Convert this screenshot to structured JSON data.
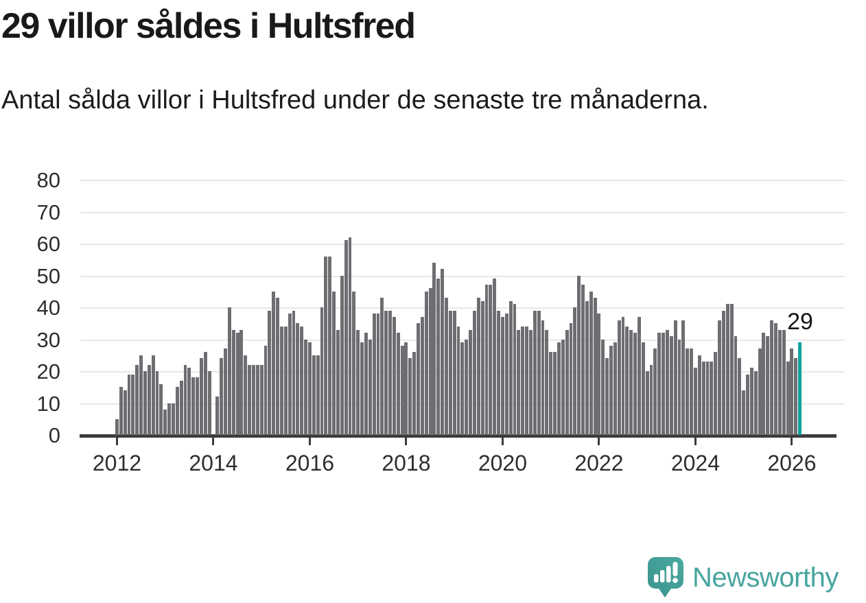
{
  "header": {
    "title": "29 villor såldes i Hultsfred",
    "subtitle": "Antal sålda villor i Hultsfred under de senaste tre månaderna."
  },
  "chart_data": {
    "type": "bar",
    "title": "29 villor såldes i Hultsfred",
    "subtitle": "Antal sålda villor i Hultsfred under de senaste tre månaderna.",
    "unit": "sålda villor (rullande tre månader)",
    "start_month": "2012-01",
    "end_month": "2026-03",
    "values": [
      5,
      15,
      14,
      19,
      19,
      22,
      25,
      20,
      22,
      25,
      20,
      16,
      8,
      10,
      10,
      15,
      17,
      22,
      21,
      18,
      18,
      24,
      26,
      20,
      0,
      12,
      24,
      27,
      40,
      33,
      32,
      33,
      25,
      22,
      22,
      22,
      22,
      28,
      39,
      45,
      43,
      34,
      34,
      38,
      39,
      35,
      34,
      30,
      29,
      25,
      25,
      40,
      56,
      56,
      45,
      33,
      50,
      61,
      62,
      45,
      33,
      29,
      32,
      30,
      38,
      38,
      43,
      39,
      39,
      37,
      32,
      28,
      29,
      24,
      26,
      35,
      37,
      45,
      46,
      54,
      49,
      52,
      43,
      39,
      39,
      34,
      29,
      30,
      33,
      39,
      43,
      42,
      47,
      47,
      49,
      39,
      37,
      38,
      42,
      41,
      33,
      34,
      34,
      33,
      39,
      39,
      36,
      33,
      26,
      26,
      29,
      30,
      33,
      35,
      40,
      50,
      47,
      42,
      45,
      43,
      38,
      30,
      24,
      28,
      29,
      36,
      37,
      34,
      33,
      32,
      37,
      29,
      20,
      22,
      27,
      32,
      32,
      33,
      31,
      36,
      30,
      36,
      27,
      27,
      21,
      25,
      23,
      23,
      23,
      26,
      36,
      39,
      41,
      41,
      31,
      24,
      14,
      19,
      21,
      20,
      27,
      32,
      31,
      36,
      35,
      33,
      33,
      23,
      27,
      24,
      29
    ],
    "highlight": {
      "index": 170,
      "value": 29,
      "label": "29"
    },
    "x_ticks": {
      "labels": [
        "2012",
        "2014",
        "2016",
        "2018",
        "2020",
        "2022",
        "2024",
        "2026"
      ],
      "every_n_bars": 24
    },
    "y_ticks": [
      0,
      10,
      20,
      30,
      40,
      50,
      60,
      70,
      80
    ],
    "ylim": [
      0,
      80
    ],
    "grid": "horizontal",
    "legend": "none",
    "colors": {
      "bar": "#6d6d72",
      "highlight": "#0ba39c",
      "axis_text": "#2e2e2e",
      "grid_line": "#e7e7e7",
      "axis_line": "#3c3c3c"
    }
  },
  "footer": {
    "brand": "Newsworthy",
    "logo_icon": "newsworthy-speech-bubble-bar-chart-icon",
    "brand_color": "#47a49d"
  }
}
